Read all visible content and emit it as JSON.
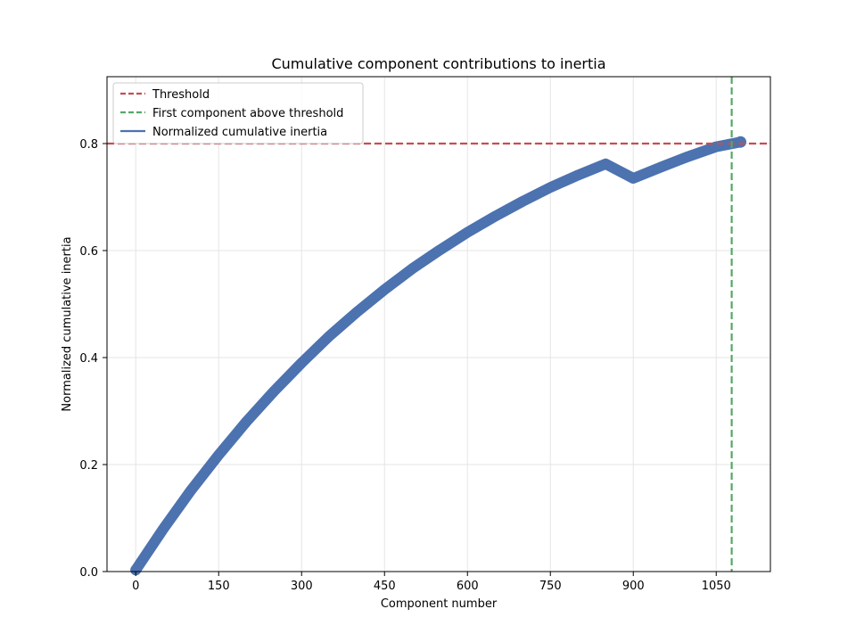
{
  "chart_data": {
    "type": "line",
    "title": "Cumulative component contributions to inertia",
    "xlabel": "Component number",
    "ylabel": "Normalized cumulative inertia",
    "xlim": [
      -52,
      1148
    ],
    "ylim": [
      0,
      0.925
    ],
    "xticks": [
      0,
      150,
      300,
      450,
      600,
      750,
      900,
      1050
    ],
    "yticks": [
      0.0,
      0.2,
      0.4,
      0.6,
      0.8
    ],
    "ytick_labels": [
      "0.0",
      "0.2",
      "0.4",
      "0.6",
      "0.8"
    ],
    "grid": true,
    "legend_position": "top-left",
    "threshold": 0.8,
    "first_component_above_threshold": 1078,
    "series": [
      {
        "name": "Normalized cumulative inertia",
        "color": "#4c72b0",
        "style": "line with circular markers",
        "x": [
          0,
          50,
          100,
          150,
          200,
          250,
          300,
          350,
          400,
          450,
          500,
          550,
          600,
          650,
          700,
          750,
          800,
          850,
          900,
          950,
          1000,
          1050,
          1094
        ],
        "y": [
          0.003,
          0.08,
          0.152,
          0.218,
          0.28,
          0.337,
          0.39,
          0.44,
          0.485,
          0.527,
          0.566,
          0.601,
          0.634,
          0.664,
          0.692,
          0.718,
          0.741,
          0.762,
          0.735,
          0.756,
          0.776,
          0.794,
          0.803
        ]
      }
    ],
    "legend": [
      {
        "label": "Threshold",
        "color": "#c44e52",
        "dash": true
      },
      {
        "label": "First component above threshold",
        "color": "#55a868",
        "dash": true
      },
      {
        "label": "Normalized cumulative inertia",
        "color": "#4c72b0",
        "dash": false
      }
    ]
  }
}
